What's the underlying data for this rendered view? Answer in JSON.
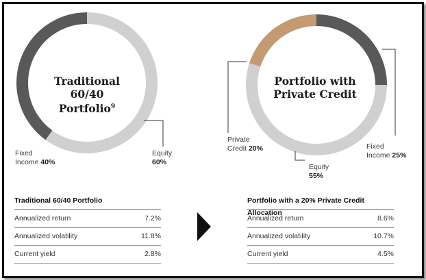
{
  "chart_data": [
    {
      "type": "pie",
      "title": "Traditional 60/40",
      "title_line2": "Portfolio",
      "title_sup": "9",
      "slices": [
        {
          "label_line1": "Fixed",
          "label_line2": "Income",
          "value": 40,
          "value_label": "40%",
          "color": "#58595b"
        },
        {
          "label_line1": "Equity",
          "label_line2": "",
          "value": 60,
          "value_label": "60%",
          "color": "#cfd0d2"
        }
      ]
    },
    {
      "type": "pie",
      "title": "Portfolio with",
      "title_line2": "Private Credit",
      "slices": [
        {
          "label_line1": "Fixed",
          "label_line2": "Income",
          "value": 25,
          "value_label": "25%",
          "color": "#58595b"
        },
        {
          "label_line1": "Equity",
          "label_line2": "",
          "value": 55,
          "value_label": "55%",
          "color": "#cfd0d2"
        },
        {
          "label_line1": "Private",
          "label_line2": "Credit",
          "value": 20,
          "value_label": "20%",
          "color": "#c39a72"
        }
      ]
    },
    {
      "type": "table",
      "title": "Traditional 60/40 Portfolio",
      "rows": [
        {
          "metric": "Annualized return",
          "value": "7.2%"
        },
        {
          "metric": "Annualized volatility",
          "value": "11.8%"
        },
        {
          "metric": "Current yield",
          "value": "2.8%"
        }
      ]
    },
    {
      "type": "table",
      "title": "Portfolio with a 20% Private Credit Allocation",
      "rows": [
        {
          "metric": "Annualized return",
          "value": "8.6%"
        },
        {
          "metric": "Annualized volatility",
          "value": "10.7%"
        },
        {
          "metric": "Current yield",
          "value": "4.5%"
        }
      ]
    }
  ]
}
